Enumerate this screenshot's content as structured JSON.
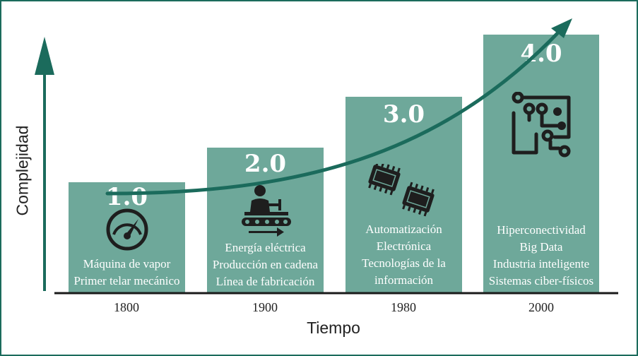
{
  "axes": {
    "y_label": "Complejidad",
    "x_label": "Tiempo"
  },
  "colors": {
    "bar": "#6ea89a",
    "accent": "#1b6b5c",
    "icon": "#1e1e1e"
  },
  "stages": [
    {
      "level": "1.0",
      "year": "1800",
      "icon": "gauge-icon",
      "lines": [
        "Máquina de vapor",
        "Primer telar mecánico"
      ]
    },
    {
      "level": "2.0",
      "year": "1900",
      "icon": "assembly-line-worker-icon",
      "lines": [
        "Energía eléctrica",
        "Producción en cadena",
        "Línea de fabricación"
      ]
    },
    {
      "level": "3.0",
      "year": "1980",
      "icon": "microchip-icon",
      "lines": [
        "Automatización",
        "Electrónica",
        "Tecnologías de la",
        "información"
      ]
    },
    {
      "level": "4.0",
      "year": "2000",
      "icon": "circuit-board-icon",
      "lines": [
        "Hiperconectividad",
        "Big Data",
        "Industria inteligente",
        "Sistemas ciber-físicos"
      ]
    }
  ]
}
